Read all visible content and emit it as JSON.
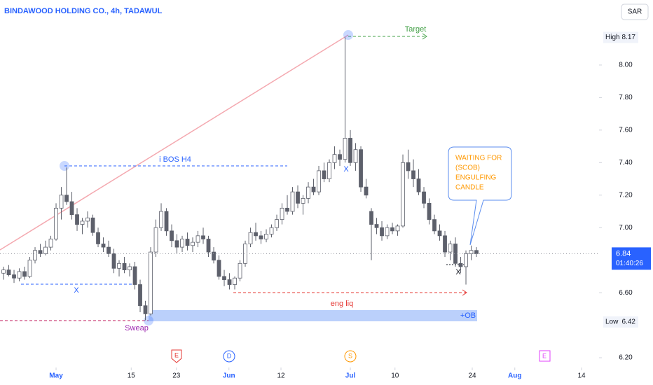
{
  "chart_data": {
    "type": "candlestick",
    "title": "BINDAWOOD HOLDING CO., 4h, TADAWUL",
    "currency": "SAR",
    "up_color": "#ffffff",
    "down_color": "#5d606b",
    "wick_color": "#5d606b",
    "ylim": [
      6.14,
      8.4
    ],
    "yticks": [
      {
        "value": 8.0,
        "label": "8.00"
      },
      {
        "value": 7.8,
        "label": "7.80"
      },
      {
        "value": 7.6,
        "label": "7.60"
      },
      {
        "value": 7.4,
        "label": "7.40"
      },
      {
        "value": 7.2,
        "label": "7.20"
      },
      {
        "value": 7.0,
        "label": "7.00"
      },
      {
        "value": 6.6,
        "label": "6.60"
      },
      {
        "value": 6.2,
        "label": "6.20"
      }
    ],
    "xlim": [
      -0.67,
      113.33
    ],
    "xticks": [
      {
        "value": 10,
        "label": "May"
      },
      {
        "value": 24.3,
        "label": "15"
      },
      {
        "value": 32.9,
        "label": "23"
      },
      {
        "value": 42.9,
        "label": "Jun"
      },
      {
        "value": 52.8,
        "label": "12"
      },
      {
        "value": 66,
        "label": "Jul"
      },
      {
        "value": 74.5,
        "label": "10"
      },
      {
        "value": 89.2,
        "label": "24"
      },
      {
        "value": 97.3,
        "label": "Aug"
      },
      {
        "value": 110,
        "label": "14"
      }
    ],
    "high": {
      "label": "High",
      "value": 8.17
    },
    "low": {
      "label": "Low",
      "value": 6.42
    },
    "last": {
      "value": 6.84,
      "countdown": "01:40:26"
    },
    "annotations": {
      "target": "Target",
      "bos": "i BOS H4",
      "x1": "X",
      "x2": "X",
      "x3": "X",
      "sweep": "Sweap",
      "liq": "eng liq",
      "ob": "+OB",
      "callout": [
        "WAITING FOR",
        "(SCOB)",
        "ENGULFING",
        "CANDLE"
      ]
    },
    "events": [
      "E",
      "D",
      "S",
      "E"
    ],
    "candles": [
      [
        6.72,
        6.76,
        6.68,
        6.74
      ],
      [
        6.74,
        6.77,
        6.7,
        6.71
      ],
      [
        6.71,
        6.74,
        6.66,
        6.69
      ],
      [
        6.69,
        6.75,
        6.67,
        6.73
      ],
      [
        6.73,
        6.76,
        6.68,
        6.7
      ],
      [
        6.7,
        6.82,
        6.69,
        6.8
      ],
      [
        6.8,
        6.88,
        6.78,
        6.86
      ],
      [
        6.86,
        6.9,
        6.82,
        6.84
      ],
      [
        6.84,
        6.92,
        6.83,
        6.88
      ],
      [
        6.88,
        6.95,
        6.86,
        6.93
      ],
      [
        6.93,
        7.15,
        6.92,
        7.12
      ],
      [
        7.12,
        7.25,
        7.05,
        7.2
      ],
      [
        7.2,
        7.37,
        7.14,
        7.16
      ],
      [
        7.16,
        7.22,
        7.05,
        7.08
      ],
      [
        7.08,
        7.12,
        6.98,
        7.02
      ],
      [
        7.02,
        7.06,
        6.96,
        7.04
      ],
      [
        7.04,
        7.1,
        7.0,
        7.06
      ],
      [
        7.06,
        7.08,
        6.95,
        6.97
      ],
      [
        6.97,
        7.0,
        6.88,
        6.9
      ],
      [
        6.9,
        6.94,
        6.85,
        6.88
      ],
      [
        6.88,
        6.92,
        6.82,
        6.84
      ],
      [
        6.84,
        6.87,
        6.72,
        6.75
      ],
      [
        6.75,
        6.8,
        6.7,
        6.78
      ],
      [
        6.78,
        6.82,
        6.72,
        6.74
      ],
      [
        6.74,
        6.78,
        6.7,
        6.76
      ],
      [
        6.76,
        6.79,
        6.62,
        6.65
      ],
      [
        6.65,
        6.68,
        6.48,
        6.52
      ],
      [
        6.52,
        6.55,
        6.43,
        6.47
      ],
      [
        6.47,
        6.88,
        6.46,
        6.85
      ],
      [
        6.85,
        7.05,
        6.82,
        7.0
      ],
      [
        7.0,
        7.15,
        6.98,
        7.1
      ],
      [
        7.1,
        7.12,
        6.95,
        6.98
      ],
      [
        6.98,
        7.02,
        6.88,
        6.92
      ],
      [
        6.92,
        6.96,
        6.84,
        6.88
      ],
      [
        6.88,
        6.95,
        6.85,
        6.93
      ],
      [
        6.93,
        6.97,
        6.86,
        6.89
      ],
      [
        6.89,
        6.94,
        6.85,
        6.91
      ],
      [
        6.91,
        6.98,
        6.88,
        6.95
      ],
      [
        6.95,
        7.0,
        6.9,
        6.93
      ],
      [
        6.93,
        6.95,
        6.82,
        6.85
      ],
      [
        6.85,
        6.88,
        6.78,
        6.8
      ],
      [
        6.8,
        6.83,
        6.68,
        6.7
      ],
      [
        6.7,
        6.74,
        6.64,
        6.68
      ],
      [
        6.68,
        6.72,
        6.62,
        6.65
      ],
      [
        6.65,
        6.7,
        6.62,
        6.69
      ],
      [
        6.69,
        6.8,
        6.67,
        6.78
      ],
      [
        6.78,
        6.92,
        6.76,
        6.9
      ],
      [
        6.9,
        7.0,
        6.88,
        6.97
      ],
      [
        6.97,
        7.03,
        6.92,
        6.95
      ],
      [
        6.95,
        6.98,
        6.9,
        6.93
      ],
      [
        6.93,
        6.99,
        6.91,
        6.96
      ],
      [
        6.96,
        7.02,
        6.94,
        7.0
      ],
      [
        7.0,
        7.08,
        6.98,
        7.05
      ],
      [
        7.05,
        7.15,
        7.02,
        7.12
      ],
      [
        7.12,
        7.2,
        7.08,
        7.1
      ],
      [
        7.1,
        7.25,
        7.08,
        7.22
      ],
      [
        7.22,
        7.26,
        7.12,
        7.15
      ],
      [
        7.15,
        7.2,
        7.08,
        7.18
      ],
      [
        7.18,
        7.28,
        7.15,
        7.25
      ],
      [
        7.25,
        7.3,
        7.2,
        7.22
      ],
      [
        7.22,
        7.38,
        7.2,
        7.35
      ],
      [
        7.35,
        7.4,
        7.28,
        7.3
      ],
      [
        7.3,
        7.42,
        7.28,
        7.4
      ],
      [
        7.4,
        7.5,
        7.36,
        7.45
      ],
      [
        7.45,
        7.48,
        7.38,
        7.42
      ],
      [
        7.42,
        8.17,
        7.4,
        7.55
      ],
      [
        7.55,
        7.6,
        7.38,
        7.4
      ],
      [
        7.4,
        7.52,
        7.35,
        7.48
      ],
      [
        7.48,
        7.5,
        7.22,
        7.25
      ],
      [
        7.25,
        7.3,
        7.18,
        7.2
      ],
      [
        7.1,
        7.12,
        6.8,
        7.02
      ],
      [
        7.02,
        7.06,
        6.96,
        7.0
      ],
      [
        7.0,
        7.04,
        6.92,
        6.95
      ],
      [
        6.95,
        7.02,
        6.93,
        7.0
      ],
      [
        7.0,
        7.03,
        6.96,
        6.98
      ],
      [
        6.98,
        7.02,
        6.95,
        7.01
      ],
      [
        7.01,
        7.45,
        7.0,
        7.4
      ],
      [
        7.4,
        7.48,
        7.3,
        7.35
      ],
      [
        7.35,
        7.42,
        7.25,
        7.3
      ],
      [
        7.3,
        7.36,
        7.2,
        7.22
      ],
      [
        7.22,
        7.25,
        7.12,
        7.15
      ],
      [
        7.15,
        7.18,
        7.02,
        7.05
      ],
      [
        7.05,
        7.08,
        6.96,
        6.98
      ],
      [
        6.98,
        7.02,
        6.92,
        6.95
      ],
      [
        6.95,
        6.98,
        6.82,
        6.85
      ],
      [
        6.85,
        6.92,
        6.8,
        6.9
      ],
      [
        6.9,
        6.94,
        6.76,
        6.78
      ],
      [
        6.78,
        6.82,
        6.72,
        6.76
      ],
      [
        6.76,
        6.86,
        6.65,
        6.84
      ],
      [
        6.84,
        6.89,
        6.8,
        6.86
      ],
      [
        6.86,
        6.88,
        6.82,
        6.84
      ]
    ]
  }
}
